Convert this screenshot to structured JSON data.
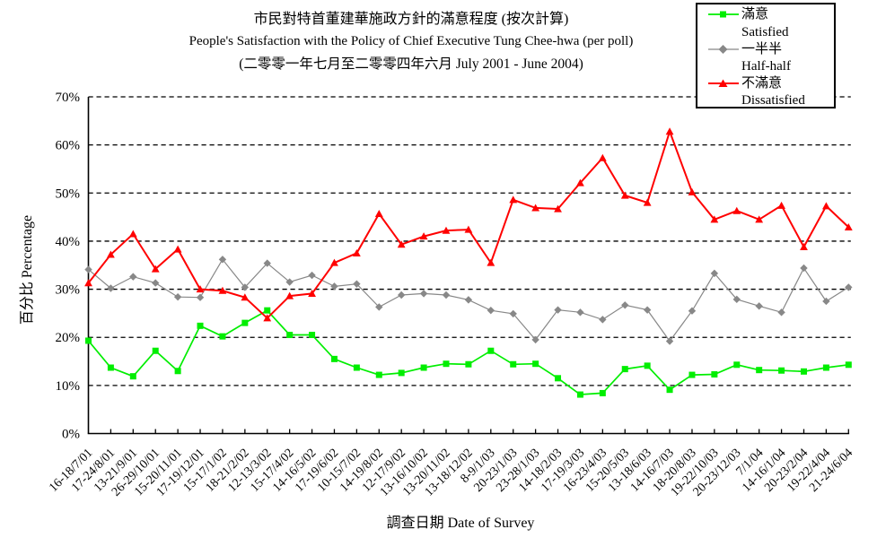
{
  "page": {
    "background": "#ffffff"
  },
  "chart_data": {
    "type": "line",
    "title": "市民對特首董建華施政方針的滿意程度 (按次計算)",
    "subtitle": "People's Satisfaction with the Policy of Chief Executive Tung Chee-hwa (per poll)",
    "period": "(二零零一年七月至二零零四年六月 July 2001 - June 2004)",
    "xlabel": "調查日期 Date of Survey",
    "ylabel": "百分比 Percentage",
    "ylim": [
      0,
      70
    ],
    "ytick_labels": [
      "0%",
      "10%",
      "20%",
      "30%",
      "40%",
      "50%",
      "60%",
      "70%"
    ],
    "grid": "horizontal dashed lines at every 10%",
    "legend_position": "top-right box",
    "categories": [
      "16-18/7/01",
      "17-24/8/01",
      "13-21/9/01",
      "26-29/10/01",
      "15-20/11/01",
      "17-19/12/01",
      "15-17/1/02",
      "18-21/2/02",
      "12-13/3/02",
      "15-17/4/02",
      "14-16/5/02",
      "17-19/6/02",
      "10-15/7/02",
      "14-19/8/02",
      "12-17/9/02",
      "13-16/10/02",
      "13-20/11/02",
      "13-18/12/02",
      "8-9/1/03",
      "20-23/1/03",
      "23-28/1/03",
      "14-18/2/03",
      "17-19/3/03",
      "16-23/4/03",
      "15-20/5/03",
      "13-18/6/03",
      "14-16/7/03",
      "18-20/8/03",
      "19-22/10/03",
      "20-23/12/03",
      "7/1/04",
      "14-16/1/04",
      "20-23/2/04",
      "19-22/4/04",
      "21-24/6/04"
    ],
    "series": [
      {
        "name_zh": "滿意",
        "name_en": "Satisfied",
        "color": "#00ee00",
        "marker": "square",
        "values": [
          19.3,
          13.7,
          11.9,
          17.2,
          13.0,
          22.4,
          20.2,
          23.0,
          25.6,
          20.5,
          20.5,
          15.5,
          13.7,
          12.2,
          12.6,
          13.7,
          14.5,
          14.4,
          17.2,
          14.4,
          14.5,
          11.5,
          8.1,
          8.4,
          13.4,
          14.1,
          9.1,
          12.2,
          12.3,
          14.3,
          13.2,
          13.1,
          12.9,
          13.7,
          14.3
        ]
      },
      {
        "name_zh": "一半半",
        "name_en": "Half-half",
        "color": "#888888",
        "marker": "diamond",
        "values": [
          34.1,
          30.2,
          32.6,
          31.3,
          28.4,
          28.3,
          36.2,
          30.4,
          35.4,
          31.5,
          32.9,
          30.6,
          31.1,
          26.3,
          28.8,
          29.1,
          28.8,
          27.8,
          25.6,
          24.9,
          19.5,
          25.7,
          25.2,
          23.7,
          26.7,
          25.7,
          19.2,
          25.5,
          33.3,
          27.9,
          26.5,
          25.2,
          34.4,
          27.5,
          30.4
        ]
      },
      {
        "name_zh": "不滿意",
        "name_en": "Dissatisfied",
        "color": "#ff0000",
        "marker": "triangle",
        "values": [
          31.3,
          37.2,
          41.5,
          34.2,
          38.3,
          30.0,
          29.7,
          28.3,
          24.0,
          28.6,
          29.1,
          35.5,
          37.5,
          45.7,
          39.3,
          41.0,
          42.2,
          42.4,
          35.5,
          48.6,
          46.9,
          46.7,
          52.1,
          57.3,
          49.5,
          48.0,
          62.8,
          50.2,
          44.5,
          46.3,
          44.5,
          47.4,
          38.8,
          47.3,
          42.9
        ]
      }
    ]
  }
}
